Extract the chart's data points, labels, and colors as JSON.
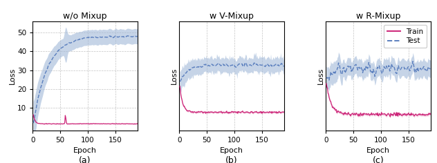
{
  "titles": [
    "w/o Mixup",
    "w V-Mixup",
    "w R-Mixup"
  ],
  "subtitles": [
    "(a)",
    "(b)",
    "(c)"
  ],
  "xlabel": "Epoch",
  "ylabel": "Loss",
  "xlim": [
    0,
    190
  ],
  "xticks": [
    0,
    50,
    100,
    150
  ],
  "train_color": "#cc2277",
  "test_color": "#5b7fbe",
  "fill_color": "#a0b8d8",
  "n_epochs": 190,
  "panel_a": {
    "ylim": [
      -2,
      56
    ],
    "yticks": [
      10,
      20,
      30,
      40,
      50
    ]
  },
  "panel_b": {
    "ylim": [
      3,
      18
    ],
    "yticks": []
  },
  "panel_c": {
    "ylim": [
      3,
      18
    ],
    "yticks": []
  },
  "figsize": [
    6.32,
    2.36
  ],
  "dpi": 100
}
